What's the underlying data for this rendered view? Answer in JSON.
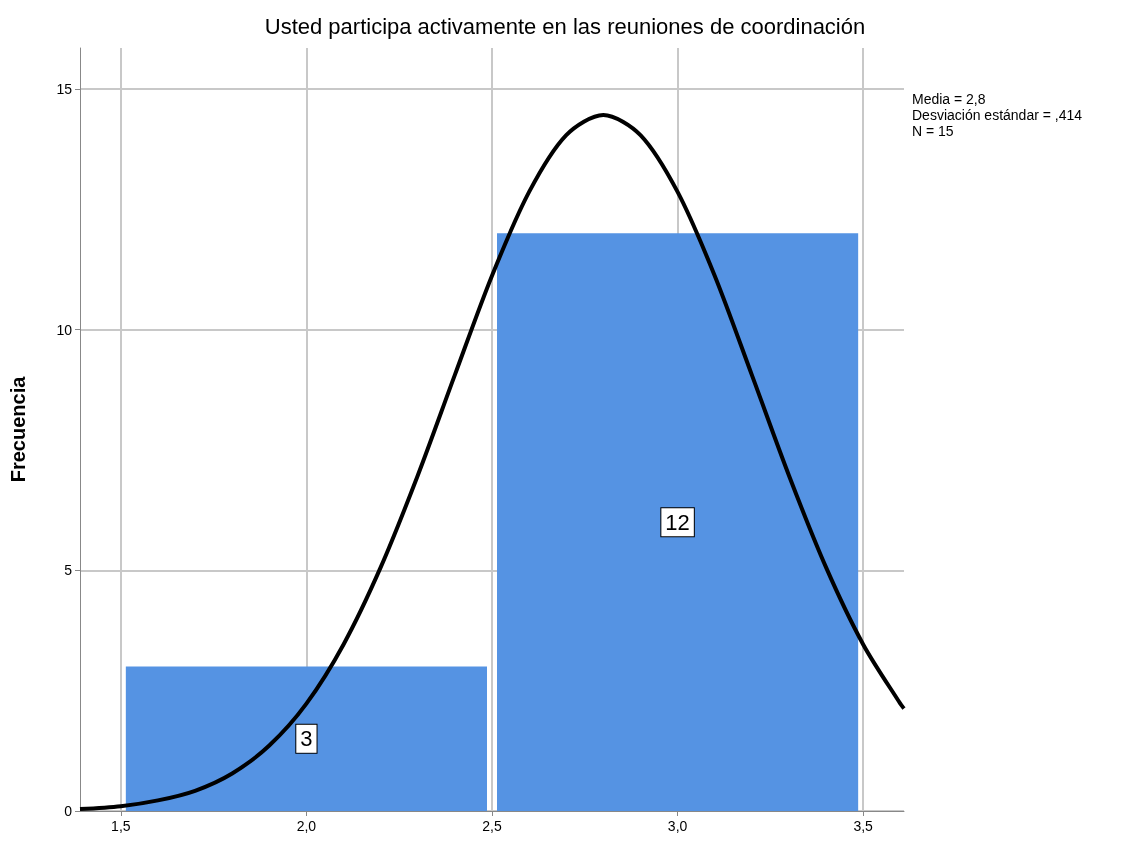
{
  "chart_data": {
    "type": "histogram",
    "title": "Usted participa activamente en las reuniones de coordinación",
    "ylabel": "Frecuencia",
    "bins": [
      1.5,
      2.5,
      3.5
    ],
    "values": [
      3,
      12
    ],
    "color": "#5593e3",
    "value_labels": [
      "3",
      "12"
    ],
    "xlim": [
      1.39,
      3.61
    ],
    "xticks": [
      {
        "value": 1.5,
        "label": "1,5"
      },
      {
        "value": 2.0,
        "label": "2,0"
      },
      {
        "value": 2.5,
        "label": "2,5"
      },
      {
        "value": 3.0,
        "label": "3,0"
      },
      {
        "value": 3.5,
        "label": "3,5"
      }
    ],
    "ylim": [
      0,
      15.85
    ],
    "yticks": [
      0,
      5,
      10,
      15
    ],
    "grid": true,
    "series": [
      {
        "type": "line",
        "color": "#000000",
        "marker": "none",
        "x": [
          1.39,
          1.5,
          1.6,
          1.7,
          1.8,
          1.9,
          2.0,
          2.1,
          2.2,
          2.3,
          2.4,
          2.5,
          2.6,
          2.7,
          2.8,
          2.9,
          3.0,
          3.1,
          3.2,
          3.3,
          3.4,
          3.5,
          3.6,
          3.61
        ],
        "values": [
          0.04,
          0.1,
          0.22,
          0.42,
          0.78,
          1.36,
          2.23,
          3.46,
          5.06,
          6.97,
          9.06,
          11.12,
          12.86,
          14.04,
          14.46,
          14.04,
          12.86,
          11.12,
          9.06,
          6.97,
          5.06,
          3.46,
          2.23,
          2.13
        ]
      }
    ],
    "annotations": [
      "Media = 2,8",
      "Desviación estándar = ,414",
      "N = 15"
    ]
  }
}
